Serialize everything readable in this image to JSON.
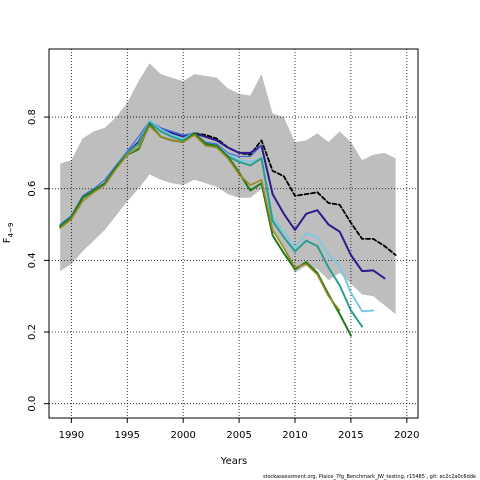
{
  "chart_data": {
    "type": "line",
    "xlabel": "Years",
    "ylabel": "F",
    "ylabel_sub": "4−9",
    "footer": "stockassessment.org,  Plaice_7fg_Benchmark_JW_testing,  r15485 ,  git:  ec2c2a0c6dde",
    "xlim": [
      1988,
      2021
    ],
    "ylim": [
      -0.04,
      0.99
    ],
    "x_ticks": [
      1990,
      1995,
      2000,
      2005,
      2010,
      2015,
      2020
    ],
    "y_ticks": [
      0.0,
      0.2,
      0.4,
      0.6,
      0.8
    ],
    "y_tick_labels": [
      "0.0",
      "0.2",
      "0.4",
      "0.6",
      "0.8"
    ],
    "grid": "dotted",
    "confidence_band": {
      "color": "#bebebe",
      "x": [
        1989,
        1990,
        1991,
        1992,
        1993,
        1994,
        1995,
        1996,
        1997,
        1998,
        1999,
        2000,
        2001,
        2002,
        2003,
        2004,
        2005,
        2006,
        2007,
        2008,
        2009,
        2010,
        2011,
        2012,
        2013,
        2014,
        2015,
        2016,
        2017,
        2018,
        2019
      ],
      "upper": [
        0.67,
        0.68,
        0.74,
        0.76,
        0.77,
        0.8,
        0.84,
        0.9,
        0.95,
        0.92,
        0.91,
        0.9,
        0.92,
        0.915,
        0.91,
        0.88,
        0.865,
        0.86,
        0.92,
        0.81,
        0.8,
        0.73,
        0.735,
        0.755,
        0.73,
        0.76,
        0.73,
        0.68,
        0.695,
        0.7,
        0.685
      ],
      "lower": [
        0.37,
        0.39,
        0.425,
        0.455,
        0.485,
        0.525,
        0.565,
        0.6,
        0.64,
        0.625,
        0.615,
        0.61,
        0.625,
        0.615,
        0.605,
        0.585,
        0.575,
        0.575,
        0.6,
        0.49,
        0.43,
        0.365,
        0.385,
        0.375,
        0.345,
        0.365,
        0.335,
        0.305,
        0.3,
        0.275,
        0.25
      ]
    },
    "series": [
      {
        "color": "#000000",
        "dashed": true,
        "width": 1.8,
        "x": [
          1989,
          1990,
          1991,
          1992,
          1993,
          1994,
          1995,
          1996,
          1997,
          1998,
          1999,
          2000,
          2001,
          2002,
          2003,
          2004,
          2005,
          2006,
          2007,
          2008,
          2009,
          2010,
          2011,
          2012,
          2013,
          2014,
          2015,
          2016,
          2017,
          2018,
          2019
        ],
        "values": [
          0.495,
          0.52,
          0.575,
          0.595,
          0.615,
          0.66,
          0.7,
          0.73,
          0.785,
          0.765,
          0.755,
          0.745,
          0.755,
          0.75,
          0.74,
          0.715,
          0.7,
          0.695,
          0.735,
          0.65,
          0.635,
          0.58,
          0.585,
          0.59,
          0.56,
          0.555,
          0.505,
          0.46,
          0.46,
          0.44,
          0.415
        ]
      },
      {
        "color": "#2b1b8c",
        "dashed": false,
        "width": 2,
        "x": [
          1989,
          1990,
          1991,
          1992,
          1993,
          1994,
          1995,
          1996,
          1997,
          1998,
          1999,
          2000,
          2001,
          2002,
          2003,
          2004,
          2005,
          2006,
          2007,
          2008,
          2009,
          2010,
          2011,
          2012,
          2013,
          2014,
          2015,
          2016,
          2017,
          2018
        ],
        "values": [
          0.495,
          0.52,
          0.575,
          0.595,
          0.615,
          0.66,
          0.7,
          0.73,
          0.785,
          0.765,
          0.755,
          0.745,
          0.755,
          0.745,
          0.735,
          0.715,
          0.7,
          0.7,
          0.72,
          0.585,
          0.53,
          0.485,
          0.53,
          0.54,
          0.5,
          0.48,
          0.415,
          0.37,
          0.372,
          0.35
        ]
      },
      {
        "color": "#3a6fd8",
        "dashed": false,
        "width": 1.2,
        "x": [
          1989,
          1990,
          1991,
          1992,
          1993,
          1994,
          1995,
          1996,
          1997,
          1998,
          1999,
          2000,
          2001,
          2002,
          2003,
          2004,
          2005,
          2006,
          2007
        ],
        "values": [
          0.5,
          0.525,
          0.58,
          0.6,
          0.625,
          0.665,
          0.705,
          0.745,
          0.79,
          0.77,
          0.76,
          0.75,
          0.755,
          0.73,
          0.725,
          0.7,
          0.69,
          0.69,
          0.72
        ]
      },
      {
        "color": "#7ec8e3",
        "dashed": false,
        "width": 2,
        "x": [
          1989,
          1990,
          1991,
          1992,
          1993,
          1994,
          1995,
          1996,
          1997,
          1998,
          1999,
          2000,
          2001,
          2002,
          2003,
          2004,
          2005,
          2006,
          2007,
          2008,
          2009,
          2010,
          2011,
          2012,
          2013,
          2014,
          2015,
          2016,
          2017
        ],
        "values": [
          0.495,
          0.52,
          0.575,
          0.595,
          0.615,
          0.66,
          0.7,
          0.725,
          0.79,
          0.765,
          0.75,
          0.74,
          0.755,
          0.725,
          0.72,
          0.695,
          0.68,
          0.675,
          0.685,
          0.52,
          0.48,
          0.435,
          0.475,
          0.465,
          0.415,
          0.385,
          0.31,
          0.258,
          0.26
        ]
      },
      {
        "color": "#2a9d8f",
        "dashed": false,
        "width": 2,
        "x": [
          1989,
          1990,
          1991,
          1992,
          1993,
          1994,
          1995,
          1996,
          1997,
          1998,
          1999,
          2000,
          2001,
          2002,
          2003,
          2004,
          2005,
          2006,
          2007,
          2008,
          2009,
          2010,
          2011,
          2012,
          2013,
          2014,
          2015,
          2016
        ],
        "values": [
          0.495,
          0.52,
          0.575,
          0.595,
          0.615,
          0.66,
          0.7,
          0.725,
          0.785,
          0.76,
          0.745,
          0.735,
          0.755,
          0.725,
          0.72,
          0.69,
          0.675,
          0.665,
          0.685,
          0.51,
          0.465,
          0.425,
          0.455,
          0.44,
          0.38,
          0.33,
          0.26,
          0.215
        ]
      },
      {
        "color": "#1f7a1f",
        "dashed": false,
        "width": 2,
        "x": [
          1989,
          1990,
          1991,
          1992,
          1993,
          1994,
          1995,
          1996,
          1997,
          1998,
          1999,
          2000,
          2001,
          2002,
          2003,
          2004,
          2005,
          2006,
          2007,
          2008,
          2009,
          2010,
          2011,
          2012,
          2013,
          2014,
          2015
        ],
        "values": [
          0.495,
          0.52,
          0.575,
          0.595,
          0.615,
          0.66,
          0.695,
          0.71,
          0.78,
          0.745,
          0.735,
          0.73,
          0.755,
          0.725,
          0.72,
          0.69,
          0.645,
          0.595,
          0.615,
          0.47,
          0.42,
          0.375,
          0.395,
          0.365,
          0.305,
          0.25,
          0.19
        ]
      },
      {
        "color": "#9a8a1f",
        "dashed": false,
        "width": 1.6,
        "x": [
          1989,
          1990,
          1991,
          1992,
          1993,
          1994,
          1995,
          1996,
          1997,
          1998,
          1999,
          2000,
          2001,
          2002,
          2003,
          2004,
          2005,
          2006,
          2007,
          2008,
          2009,
          2010,
          2011,
          2012,
          2013,
          2014
        ],
        "values": [
          0.49,
          0.515,
          0.565,
          0.59,
          0.61,
          0.655,
          0.695,
          0.715,
          0.775,
          0.745,
          0.735,
          0.73,
          0.75,
          0.72,
          0.715,
          0.685,
          0.64,
          0.61,
          0.625,
          0.485,
          0.435,
          0.38,
          0.39,
          0.36,
          0.3,
          0.26
        ]
      }
    ]
  }
}
